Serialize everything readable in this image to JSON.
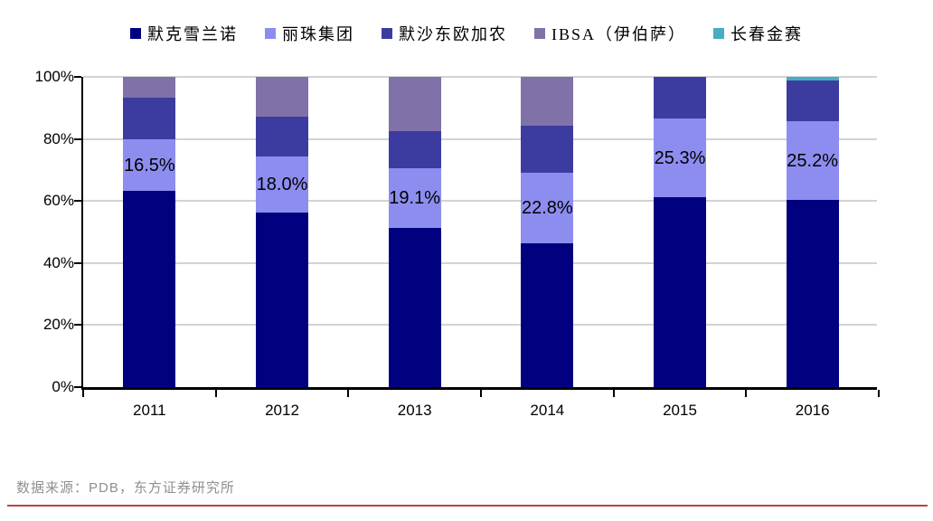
{
  "chart_data": {
    "type": "bar",
    "subtype": "stacked-100-percent-column",
    "categories": [
      "2011",
      "2012",
      "2013",
      "2014",
      "2015",
      "2016"
    ],
    "series": [
      {
        "name": "默克雪兰诺",
        "color": "#01017F",
        "values": [
          63.3,
          56.3,
          51.4,
          46.4,
          61.2,
          60.4
        ]
      },
      {
        "name": "丽珠集团",
        "color": "#8D8DF0",
        "values": [
          16.5,
          18.0,
          19.1,
          22.8,
          25.3,
          25.2
        ],
        "labels": [
          "16.5%",
          "18.0%",
          "19.1%",
          "22.8%",
          "25.3%",
          "25.2%"
        ]
      },
      {
        "name": "默沙东欧加农",
        "color": "#3C3CA0",
        "values": [
          13.4,
          13.0,
          12.1,
          15.1,
          13.5,
          13.1
        ]
      },
      {
        "name": "IBSA（伊伯萨）",
        "color": "#8071A9",
        "values": [
          6.8,
          12.7,
          17.4,
          15.7,
          0,
          0
        ]
      },
      {
        "name": "长春金赛",
        "color": "#46AEC2",
        "values": [
          0,
          0,
          0,
          0,
          0,
          1.3
        ]
      }
    ],
    "title": "",
    "xlabel": "",
    "ylabel": "",
    "ylim": [
      0,
      100
    ],
    "y_ticks": [
      "0%",
      "20%",
      "40%",
      "60%",
      "80%",
      "100%"
    ],
    "y_tick_values": [
      0,
      20,
      40,
      60,
      80,
      100
    ],
    "grid": "horizontal",
    "legend_position": "top"
  },
  "footer": {
    "source_text": "数据来源：PDB，东方证券研究所"
  },
  "colors": {
    "background": "#FFFFFF",
    "axis": "#000000",
    "grid": "#D3D3D3",
    "data_label": "#000000",
    "source_text": "#8F8F8F",
    "red_divider": "#B94442"
  }
}
